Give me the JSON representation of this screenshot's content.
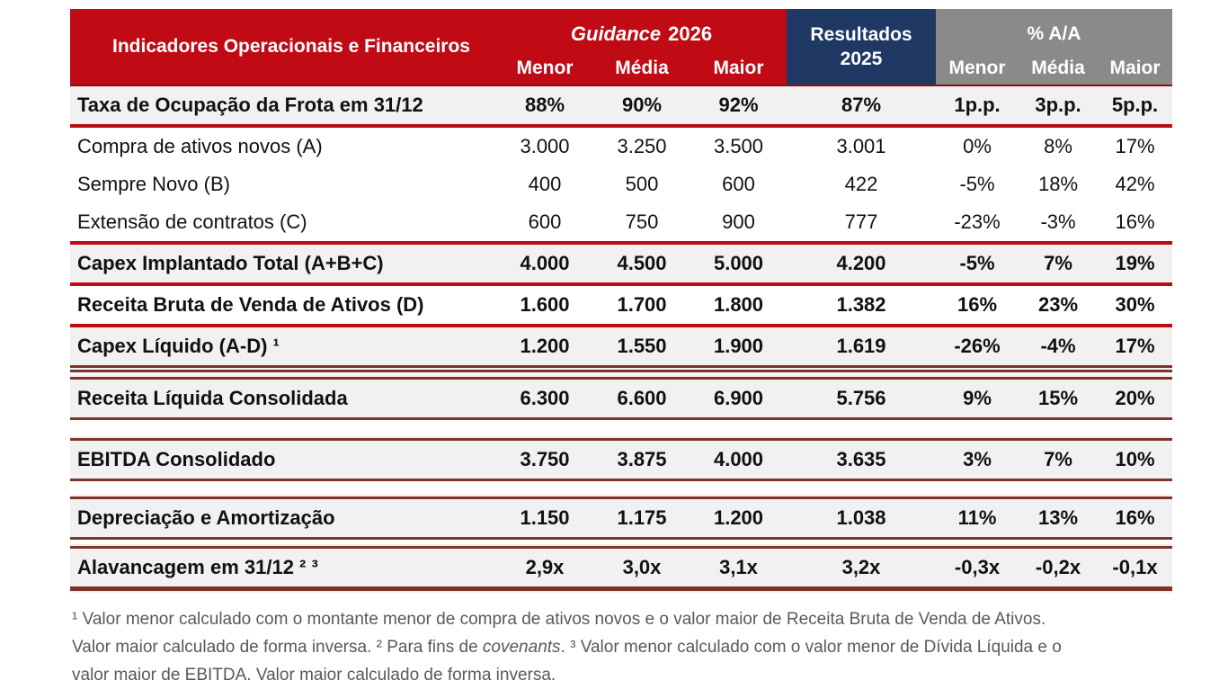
{
  "colors": {
    "red": "#c00a14",
    "navy": "#1f3864",
    "grayhdr": "#8a8a8a",
    "rowgray": "#f1f1f1",
    "dark": "#7e3527",
    "pink": "#fbe9ee",
    "fngray": "#595959"
  },
  "header": {
    "label": "Indicadores Operacionais e Financeiros",
    "guidance_word": "Guidance",
    "guidance_year": "2026",
    "results_line1": "Resultados",
    "results_line2": "2025",
    "yoy_label": "% A/A",
    "subcolumns": [
      "Menor",
      "Média",
      "Maior"
    ]
  },
  "table": {
    "rows": [
      {
        "label": "Taxa de Ocupação da Frota em 31/12",
        "values": [
          "88%",
          "90%",
          "92%",
          "87%",
          "1p.p.",
          "3p.p.",
          "5p.p."
        ],
        "bold": true,
        "gray": true,
        "cls": "first sep-red"
      },
      {
        "label": "Compra de ativos novos (A)",
        "values": [
          "3.000",
          "3.250",
          "3.500",
          "3.001",
          "0%",
          "8%",
          "17%"
        ],
        "bold": false,
        "gray": false,
        "cls": ""
      },
      {
        "label": "Sempre Novo (B)",
        "values": [
          "400",
          "500",
          "600",
          "422",
          "-5%",
          "18%",
          "42%"
        ],
        "bold": false,
        "gray": false,
        "cls": ""
      },
      {
        "label": "Extensão de contratos (C)",
        "values": [
          "600",
          "750",
          "900",
          "777",
          "-23%",
          "-3%",
          "16%"
        ],
        "bold": false,
        "gray": false,
        "cls": "sep-red"
      },
      {
        "label": "Capex Implantado Total (A+B+C)",
        "values": [
          "4.000",
          "4.500",
          "5.000",
          "4.200",
          "-5%",
          "7%",
          "19%"
        ],
        "bold": true,
        "gray": true,
        "cls": "sep-red"
      },
      {
        "label": "Receita Bruta de Venda de Ativos (D)",
        "values": [
          "1.600",
          "1.700",
          "1.800",
          "1.382",
          "16%",
          "23%",
          "30%"
        ],
        "bold": true,
        "gray": false,
        "cls": "sep-red"
      },
      {
        "label": "Capex Líquido (A-D) ¹",
        "values": [
          "1.200",
          "1.550",
          "1.900",
          "1.619",
          "-26%",
          "-4%",
          "17%"
        ],
        "bold": true,
        "gray": true,
        "cls": "sep-double"
      },
      {
        "spacer": 5
      },
      {
        "label": "Receita Líquida Consolidada",
        "values": [
          "6.300",
          "6.600",
          "6.900",
          "5.756",
          "9%",
          "15%",
          "20%"
        ],
        "bold": true,
        "gray": true,
        "cls": "band"
      },
      {
        "spacer": 20
      },
      {
        "label": "EBITDA Consolidado",
        "values": [
          "3.750",
          "3.875",
          "4.000",
          "3.635",
          "3%",
          "7%",
          "10%"
        ],
        "bold": true,
        "gray": true,
        "cls": "band"
      },
      {
        "spacer": 17
      },
      {
        "label": "Depreciação e Amortização",
        "values": [
          "1.150",
          "1.175",
          "1.200",
          "1.038",
          "11%",
          "13%",
          "16%"
        ],
        "bold": true,
        "gray": true,
        "cls": "band"
      },
      {
        "spacer": 7
      },
      {
        "label": "Alavancagem em 31/12 ² ³",
        "values": [
          "2,9x",
          "3,0x",
          "3,1x",
          "3,2x",
          "-0,3x",
          "-0,2x",
          "-0,1x"
        ],
        "bold": true,
        "gray": true,
        "cls": "band band-last"
      }
    ]
  },
  "footnote": {
    "segments": [
      {
        "text": "¹ Valor menor calculado com o montante menor de compra de ativos novos e o valor maior de Receita Bruta de Venda de Ativos. Valor maior calculado de forma inversa. ² Para fins de ",
        "italic": false
      },
      {
        "text": "covenants",
        "italic": true
      },
      {
        "text": ". ³ Valor menor calculado com o valor menor de Dívida Líquida e o valor maior de EBITDA. Valor maior calculado de forma inversa.",
        "italic": false
      }
    ]
  }
}
